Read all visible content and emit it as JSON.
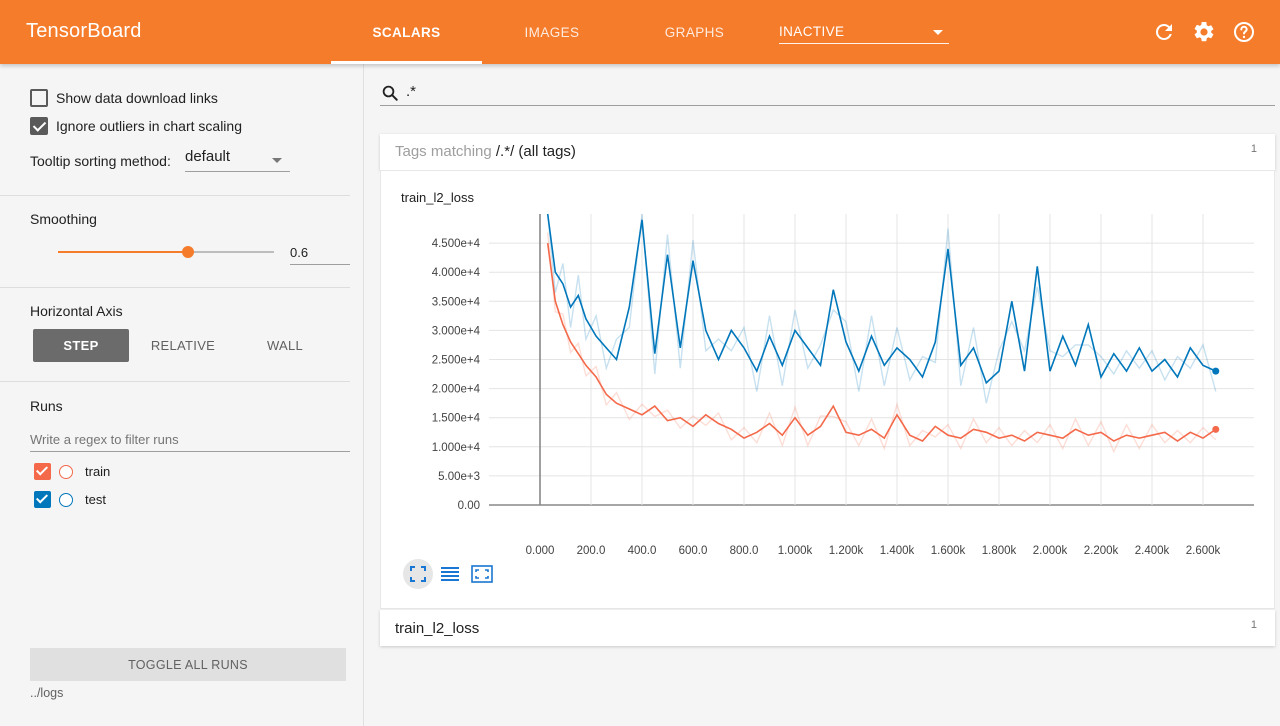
{
  "app": {
    "title": "TensorBoard",
    "tabs": [
      {
        "label": "SCALARS",
        "active": true
      },
      {
        "label": "IMAGES",
        "active": false
      },
      {
        "label": "GRAPHS",
        "active": false
      }
    ],
    "inactive_selector": "INACTIVE",
    "accent": "#f57c2b"
  },
  "sidebar": {
    "show_download_links": {
      "label": "Show data download links",
      "checked": false
    },
    "ignore_outliers": {
      "label": "Ignore outliers in chart scaling",
      "checked": true
    },
    "tooltip_sorting": {
      "label": "Tooltip sorting method:",
      "value": "default"
    },
    "smoothing": {
      "label": "Smoothing",
      "value": "0.6",
      "fraction": 0.6
    },
    "horizontal_axis": {
      "label": "Horizontal Axis",
      "options": [
        "STEP",
        "RELATIVE",
        "WALL"
      ],
      "selected": "STEP"
    },
    "runs": {
      "label": "Runs",
      "filter_placeholder": "Write a regex to filter runs",
      "items": [
        {
          "name": "train",
          "checked": true,
          "color": "#f4694a"
        },
        {
          "name": "test",
          "checked": true,
          "color": "#0077bb"
        }
      ]
    },
    "toggle_all": "TOGGLE ALL RUNS",
    "logdir": "../logs"
  },
  "main": {
    "search_value": ".*",
    "tags_header": {
      "prefix": "Tags matching",
      "regex": "/.*/",
      "suffix": "(all tags)",
      "count": "1"
    },
    "chart_card_title": "train_l2_loss",
    "collapsed_group": {
      "title": "train_l2_loss",
      "count": "1"
    }
  },
  "chart_data": {
    "type": "line",
    "title": "train_l2_loss",
    "xlabel": "",
    "ylabel": "",
    "xlim": [
      -200,
      2800
    ],
    "ylim": [
      0,
      50000
    ],
    "y_ticks": [
      "0.00",
      "5.00e+3",
      "1.000e+4",
      "1.500e+4",
      "2.000e+4",
      "2.500e+4",
      "3.000e+4",
      "3.500e+4",
      "4.000e+4",
      "4.500e+4"
    ],
    "y_tick_values": [
      0,
      5000,
      10000,
      15000,
      20000,
      25000,
      30000,
      35000,
      40000,
      45000
    ],
    "x_ticks": [
      "0.000",
      "200.0",
      "400.0",
      "600.0",
      "800.0",
      "1.000k",
      "1.200k",
      "1.400k",
      "1.600k",
      "1.800k",
      "2.000k",
      "2.200k",
      "2.400k",
      "2.600k"
    ],
    "x_tick_values": [
      0,
      200,
      400,
      600,
      800,
      1000,
      1200,
      1400,
      1600,
      1800,
      2000,
      2200,
      2400,
      2600
    ],
    "grid": true,
    "series": [
      {
        "name": "train",
        "color": "#f4694a",
        "x": [
          30,
          60,
          90,
          120,
          150,
          180,
          220,
          260,
          300,
          350,
          400,
          450,
          500,
          550,
          600,
          650,
          700,
          750,
          800,
          850,
          900,
          950,
          1000,
          1050,
          1100,
          1150,
          1200,
          1250,
          1300,
          1350,
          1400,
          1450,
          1500,
          1550,
          1600,
          1650,
          1700,
          1750,
          1800,
          1850,
          1900,
          1950,
          2000,
          2050,
          2100,
          2150,
          2200,
          2250,
          2300,
          2350,
          2400,
          2450,
          2500,
          2550,
          2600,
          2650
        ],
        "y": [
          45000,
          35000,
          31000,
          28000,
          26000,
          24000,
          22000,
          19000,
          17500,
          16500,
          15500,
          17000,
          14500,
          15000,
          13500,
          15500,
          14000,
          13000,
          11500,
          12500,
          14000,
          12000,
          15000,
          12000,
          13500,
          17000,
          12500,
          12000,
          13000,
          11500,
          15500,
          12000,
          11000,
          13500,
          12000,
          11500,
          13000,
          12500,
          11500,
          12000,
          11000,
          12500,
          12000,
          11500,
          13000,
          12000,
          12500,
          11000,
          12000,
          11500,
          12000,
          12500,
          11000,
          12500,
          11500,
          13000
        ]
      },
      {
        "name": "test",
        "color": "#0077bb",
        "x": [
          30,
          60,
          90,
          120,
          150,
          180,
          220,
          260,
          300,
          350,
          400,
          450,
          500,
          550,
          600,
          650,
          700,
          750,
          800,
          850,
          900,
          950,
          1000,
          1050,
          1100,
          1150,
          1200,
          1250,
          1300,
          1350,
          1400,
          1450,
          1500,
          1550,
          1600,
          1650,
          1700,
          1750,
          1800,
          1850,
          1900,
          1950,
          2000,
          2050,
          2100,
          2150,
          2200,
          2250,
          2300,
          2350,
          2400,
          2450,
          2500,
          2550,
          2600,
          2650
        ],
        "y": [
          50000,
          40000,
          38000,
          34000,
          36000,
          32000,
          29000,
          27000,
          25000,
          34000,
          49000,
          26000,
          43000,
          27000,
          42000,
          30000,
          25000,
          30000,
          27000,
          23000,
          29000,
          24000,
          30000,
          27000,
          24000,
          37000,
          28000,
          23000,
          29000,
          24000,
          27000,
          25000,
          22000,
          28000,
          44000,
          24000,
          27000,
          21000,
          23000,
          35000,
          23000,
          41000,
          23000,
          29000,
          24000,
          31000,
          22000,
          26000,
          23000,
          27000,
          23000,
          25000,
          22000,
          27000,
          24000,
          23000
        ]
      }
    ]
  }
}
